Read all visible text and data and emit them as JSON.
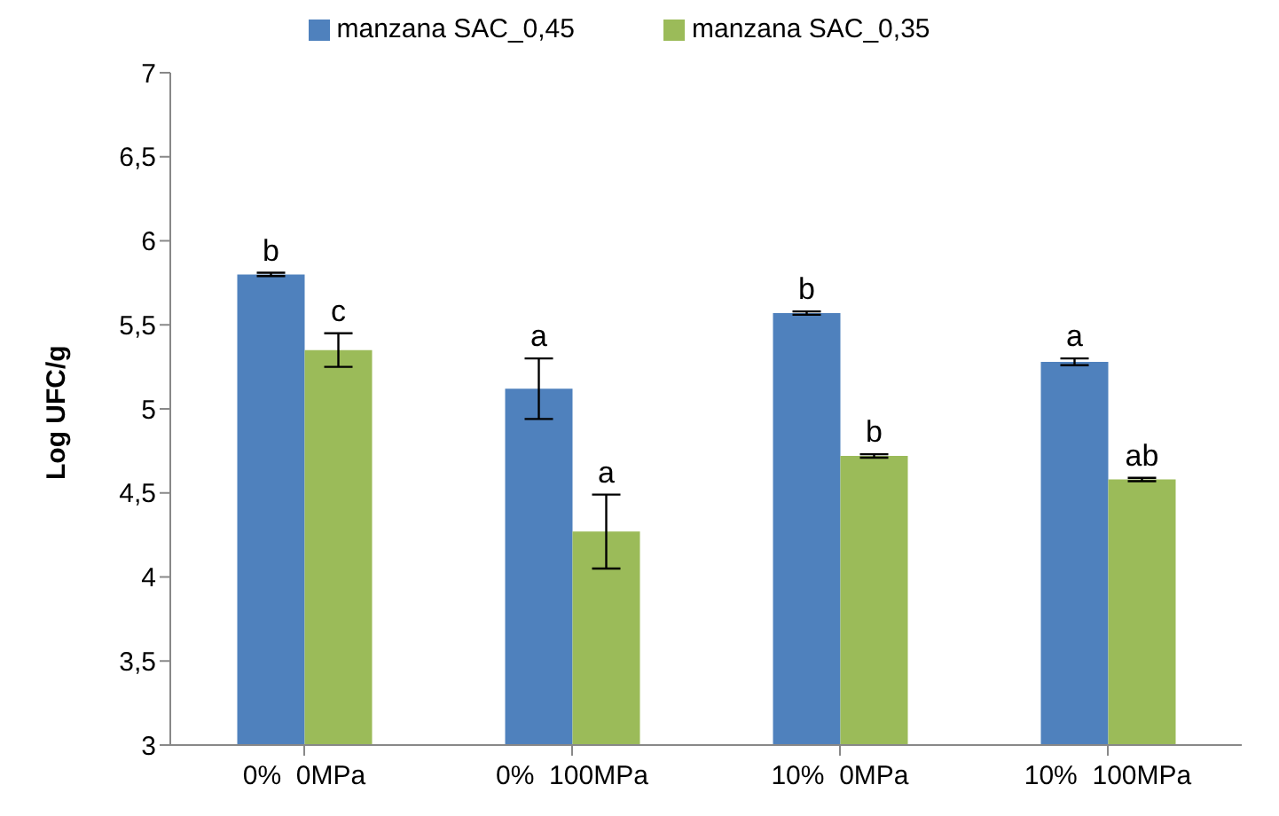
{
  "chart_data": {
    "type": "bar",
    "ylabel": "Log UFC/g",
    "categories": [
      "0%  0MPa",
      "0%  100MPa",
      "10%  0MPa",
      "10%  100MPa"
    ],
    "series": [
      {
        "name": "manzana SAC_0,45",
        "color": "#4f81bd",
        "values": [
          5.8,
          5.12,
          5.57,
          5.28
        ],
        "errors": [
          0.01,
          0.18,
          0.01,
          0.02
        ]
      },
      {
        "name": "manzana SAC_0,35",
        "color": "#9bbb59",
        "values": [
          5.35,
          4.27,
          4.72,
          4.58
        ],
        "errors": [
          0.1,
          0.22,
          0.01,
          0.01
        ]
      }
    ],
    "ylim": [
      3,
      7
    ],
    "yticks": [
      3,
      {
        "value": 3.5,
        "label": "3,5"
      },
      4,
      {
        "value": 4.5,
        "label": "4,5"
      },
      5,
      {
        "value": 5.5,
        "label": "5,5"
      },
      6,
      {
        "value": 6.5,
        "label": "6,5"
      },
      7
    ],
    "annotations": [
      "b",
      "c",
      "a",
      "a",
      "b",
      "b",
      "a",
      "ab"
    ],
    "grid": false,
    "legend": "top"
  }
}
